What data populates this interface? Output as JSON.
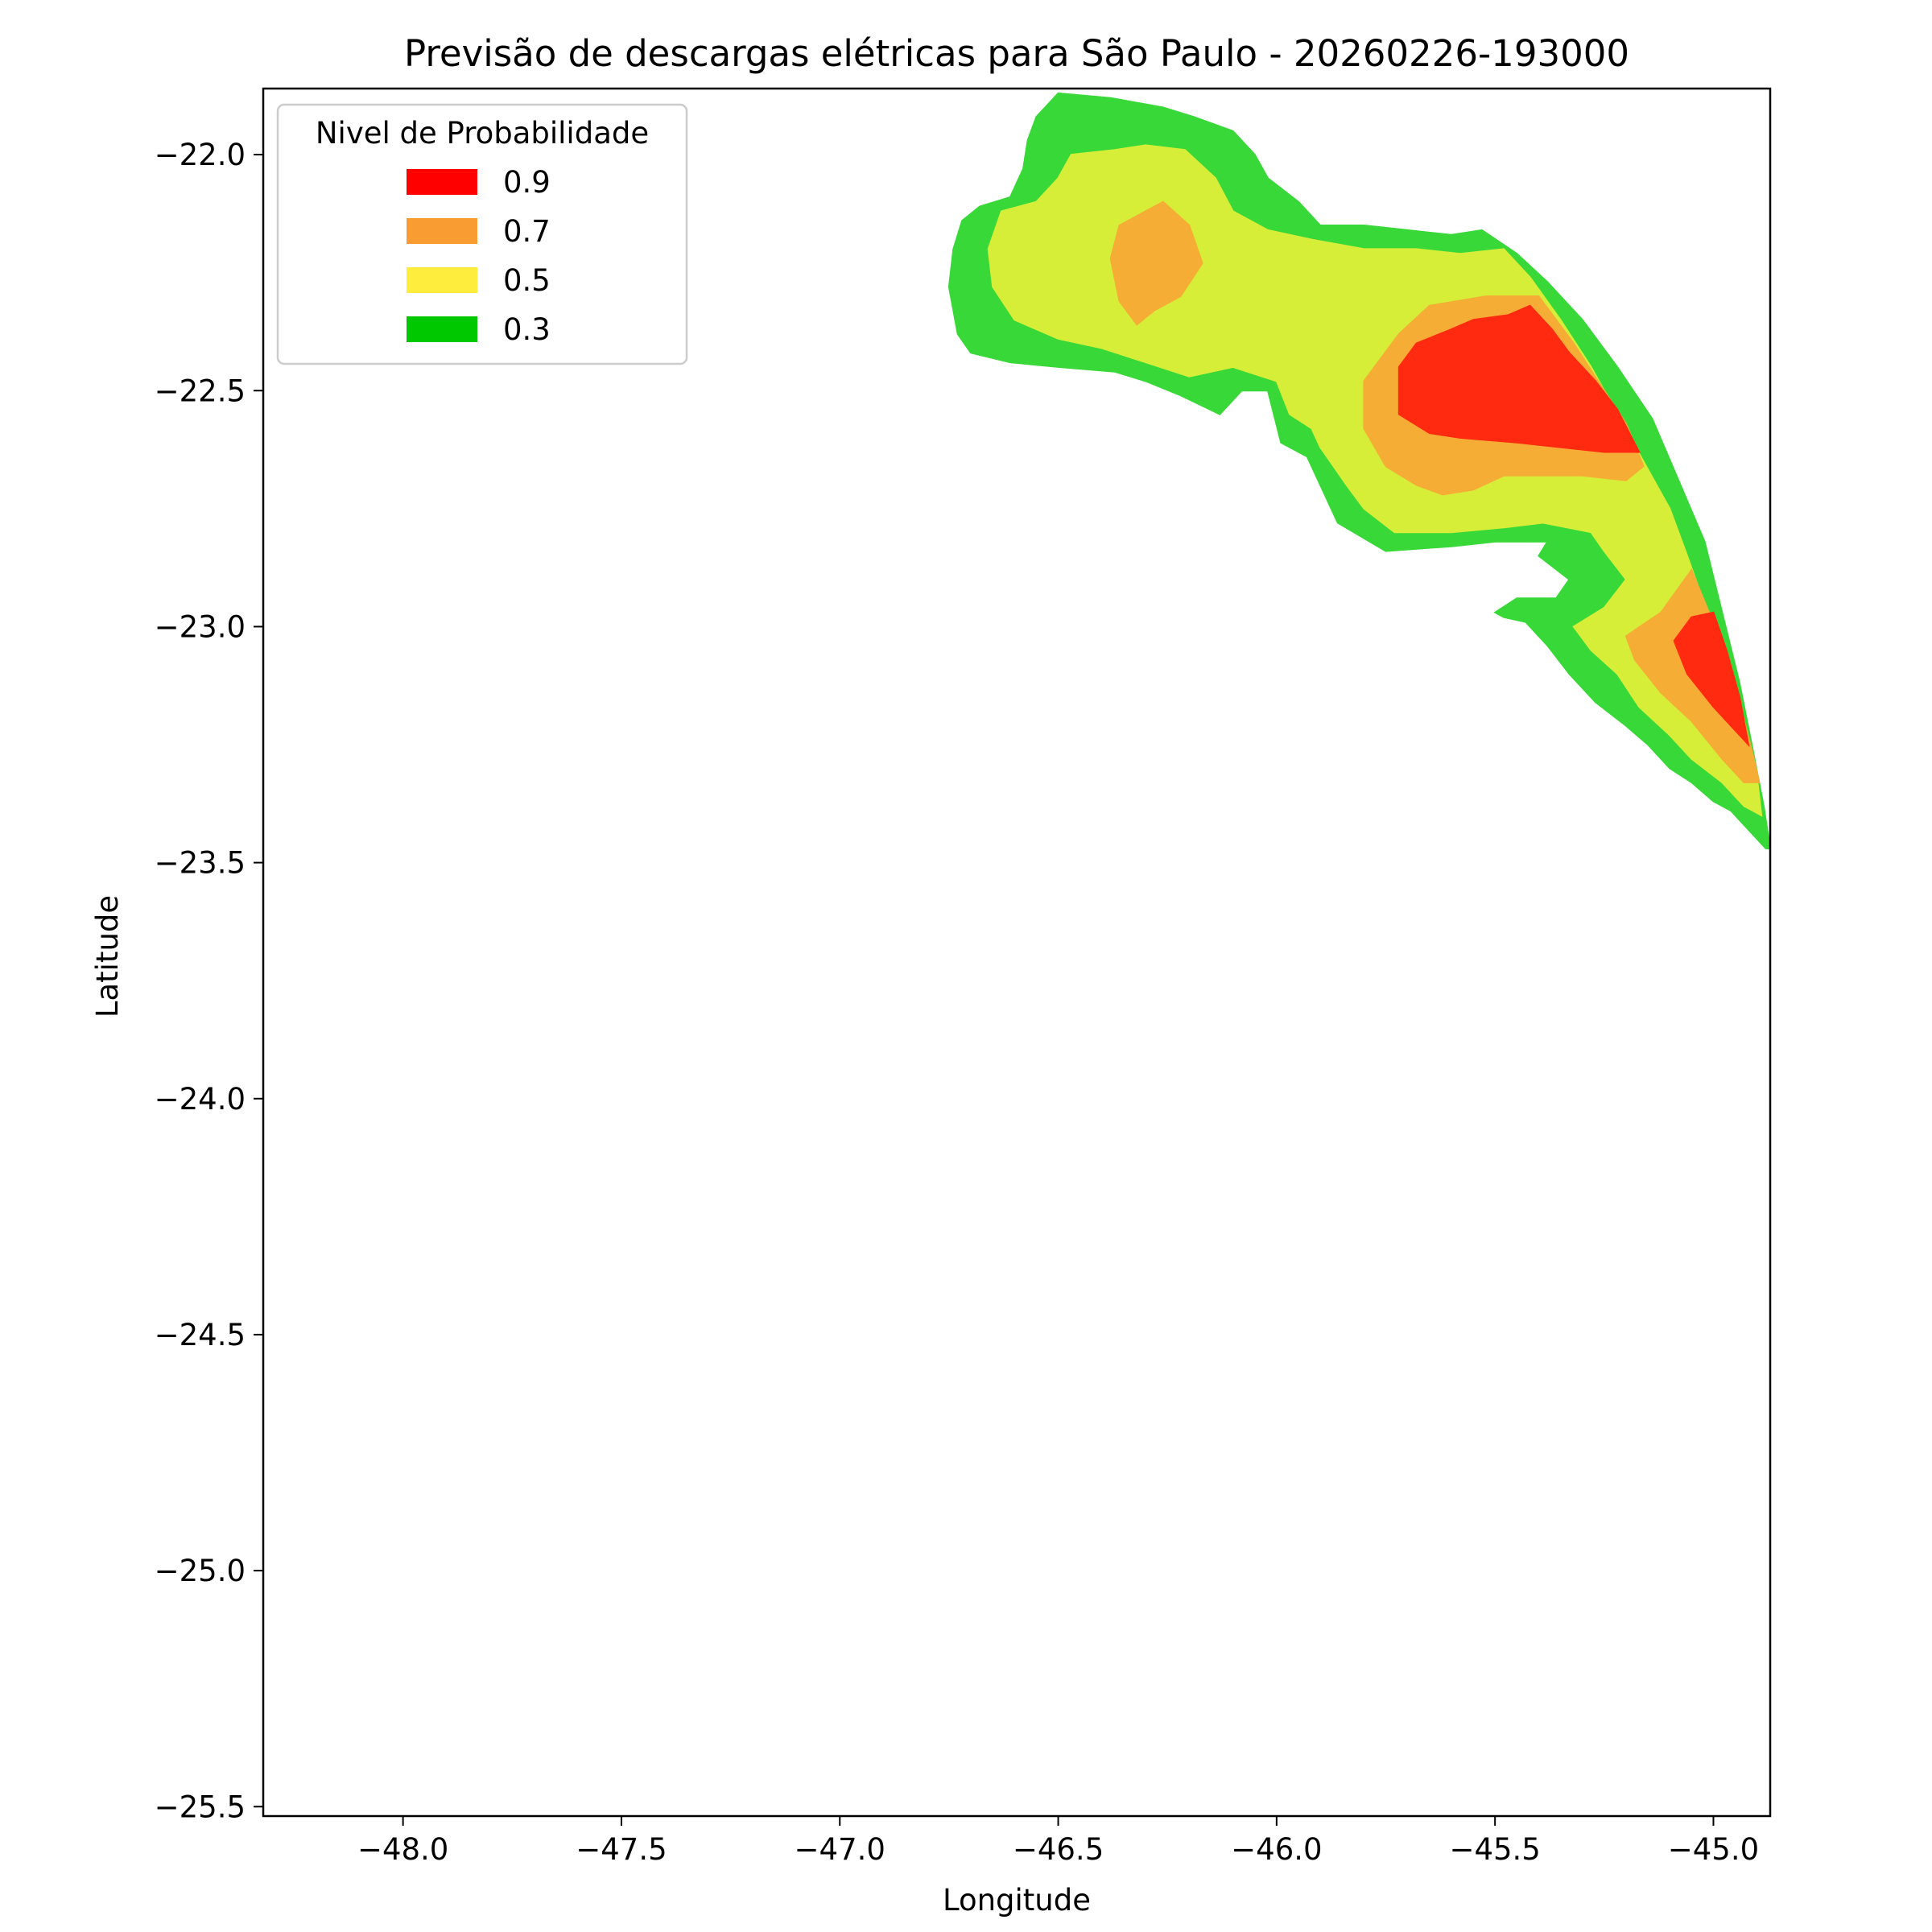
{
  "chart_data": {
    "type": "filled-contour",
    "title": "Previsão de descargas elétricas para São Paulo - 20260226-193000",
    "xlabel": "Longitude",
    "ylabel": "Latitude",
    "xlim": [
      -48.32,
      -44.87
    ],
    "ylim": [
      -25.52,
      -21.86
    ],
    "xticks": [
      -48.0,
      -47.5,
      -47.0,
      -46.5,
      -46.0,
      -45.5,
      -45.0
    ],
    "xtick_labels": [
      "−48.0",
      "−47.5",
      "−47.0",
      "−46.5",
      "−46.0",
      "−45.5",
      "−45.0"
    ],
    "yticks": [
      -22.0,
      -22.5,
      -23.0,
      -23.5,
      -24.0,
      -24.5,
      -25.0,
      -25.5
    ],
    "ytick_labels": [
      "−22.0",
      "−22.5",
      "−23.0",
      "−23.5",
      "−24.0",
      "−24.5",
      "−25.0",
      "−25.5"
    ],
    "grid": false,
    "legend": {
      "title": "Nivel de Probabilidade",
      "placement": "top-left",
      "entries": [
        {
          "label": "0.9",
          "color": "#ff0000"
        },
        {
          "label": "0.7",
          "color": "#f99d32"
        },
        {
          "label": "0.5",
          "color": "#ffed3d"
        },
        {
          "label": "0.3",
          "color": "#00c800"
        }
      ]
    },
    "levels": [
      {
        "level": "0.3",
        "color": "#39d839",
        "polygons": [
          [
            [
              -46.5,
              -21.87
            ],
            [
              -46.38,
              -21.88
            ],
            [
              -46.26,
              -21.9
            ],
            [
              -46.19,
              -21.92
            ],
            [
              -46.1,
              -21.95
            ],
            [
              -46.05,
              -22.0
            ],
            [
              -46.02,
              -22.05
            ],
            [
              -45.95,
              -22.1
            ],
            [
              -45.9,
              -22.15
            ],
            [
              -45.8,
              -22.15
            ],
            [
              -45.7,
              -22.16
            ],
            [
              -45.6,
              -22.17
            ],
            [
              -45.53,
              -22.16
            ],
            [
              -45.45,
              -22.21
            ],
            [
              -45.38,
              -22.27
            ],
            [
              -45.3,
              -22.35
            ],
            [
              -45.22,
              -22.45
            ],
            [
              -45.14,
              -22.56
            ],
            [
              -45.08,
              -22.69
            ],
            [
              -45.02,
              -22.82
            ],
            [
              -44.98,
              -22.97
            ],
            [
              -44.94,
              -23.12
            ],
            [
              -44.91,
              -23.26
            ],
            [
              -44.885,
              -23.38
            ],
            [
              -44.87,
              -23.47
            ],
            [
              -44.88,
              -23.47
            ],
            [
              -44.92,
              -23.43
            ],
            [
              -44.96,
              -23.39
            ],
            [
              -45.0,
              -23.37
            ],
            [
              -45.05,
              -23.33
            ],
            [
              -45.1,
              -23.3
            ],
            [
              -45.15,
              -23.25
            ],
            [
              -45.2,
              -23.21
            ],
            [
              -45.27,
              -23.16
            ],
            [
              -45.33,
              -23.1
            ],
            [
              -45.38,
              -23.04
            ],
            [
              -45.43,
              -22.99
            ],
            [
              -45.48,
              -22.98
            ],
            [
              -45.5,
              -22.97
            ],
            [
              -45.45,
              -22.94
            ],
            [
              -45.36,
              -22.94
            ],
            [
              -45.33,
              -22.9
            ],
            [
              -45.4,
              -22.85
            ],
            [
              -45.38,
              -22.82
            ],
            [
              -45.5,
              -22.82
            ],
            [
              -45.6,
              -22.83
            ],
            [
              -45.75,
              -22.84
            ],
            [
              -45.86,
              -22.78
            ],
            [
              -45.9,
              -22.7
            ],
            [
              -45.93,
              -22.64
            ],
            [
              -45.99,
              -22.61
            ],
            [
              -46.02,
              -22.5
            ],
            [
              -46.08,
              -22.5
            ],
            [
              -46.13,
              -22.55
            ],
            [
              -46.22,
              -22.51
            ],
            [
              -46.3,
              -22.48
            ],
            [
              -46.37,
              -22.46
            ],
            [
              -46.5,
              -22.45
            ],
            [
              -46.61,
              -22.44
            ],
            [
              -46.7,
              -22.42
            ],
            [
              -46.73,
              -22.38
            ],
            [
              -46.75,
              -22.28
            ],
            [
              -46.74,
              -22.2
            ],
            [
              -46.72,
              -22.14
            ],
            [
              -46.68,
              -22.11
            ],
            [
              -46.61,
              -22.09
            ],
            [
              -46.58,
              -22.03
            ],
            [
              -46.57,
              -21.97
            ],
            [
              -46.55,
              -21.92
            ]
          ]
        ]
      },
      {
        "level": "0.5",
        "color": "#d6ee38",
        "polygons": [
          [
            [
              -46.47,
              -22.0
            ],
            [
              -46.37,
              -21.99
            ],
            [
              -46.3,
              -21.98
            ],
            [
              -46.21,
              -21.99
            ],
            [
              -46.14,
              -22.05
            ],
            [
              -46.1,
              -22.12
            ],
            [
              -46.02,
              -22.16
            ],
            [
              -45.92,
              -22.18
            ],
            [
              -45.8,
              -22.2
            ],
            [
              -45.68,
              -22.2
            ],
            [
              -45.58,
              -22.21
            ],
            [
              -45.48,
              -22.2
            ],
            [
              -45.42,
              -22.26
            ],
            [
              -45.35,
              -22.35
            ],
            [
              -45.28,
              -22.45
            ],
            [
              -45.22,
              -22.55
            ],
            [
              -45.16,
              -22.65
            ],
            [
              -45.1,
              -22.75
            ],
            [
              -45.06,
              -22.85
            ],
            [
              -45.01,
              -22.98
            ],
            [
              -44.97,
              -23.1
            ],
            [
              -44.93,
              -23.22
            ],
            [
              -44.9,
              -23.32
            ],
            [
              -44.89,
              -23.4
            ],
            [
              -44.93,
              -23.38
            ],
            [
              -44.98,
              -23.33
            ],
            [
              -45.05,
              -23.28
            ],
            [
              -45.1,
              -23.23
            ],
            [
              -45.17,
              -23.17
            ],
            [
              -45.22,
              -23.1
            ],
            [
              -45.28,
              -23.05
            ],
            [
              -45.32,
              -23.0
            ],
            [
              -45.25,
              -22.96
            ],
            [
              -45.2,
              -22.9
            ],
            [
              -45.25,
              -22.84
            ],
            [
              -45.28,
              -22.8
            ],
            [
              -45.39,
              -22.78
            ],
            [
              -45.48,
              -22.79
            ],
            [
              -45.6,
              -22.8
            ],
            [
              -45.73,
              -22.8
            ],
            [
              -45.8,
              -22.75
            ],
            [
              -45.84,
              -22.7
            ],
            [
              -45.9,
              -22.62
            ],
            [
              -45.92,
              -22.58
            ],
            [
              -45.97,
              -22.55
            ],
            [
              -46.0,
              -22.48
            ],
            [
              -46.1,
              -22.45
            ],
            [
              -46.2,
              -22.47
            ],
            [
              -46.3,
              -22.44
            ],
            [
              -46.4,
              -22.41
            ],
            [
              -46.5,
              -22.39
            ],
            [
              -46.6,
              -22.35
            ],
            [
              -46.65,
              -22.28
            ],
            [
              -46.66,
              -22.2
            ],
            [
              -46.63,
              -22.12
            ],
            [
              -46.55,
              -22.1
            ],
            [
              -46.5,
              -22.05
            ]
          ]
        ]
      },
      {
        "level": "0.7",
        "color": "#f5ad35",
        "polygons": [
          [
            [
              -46.36,
              -22.15
            ],
            [
              -46.26,
              -22.1
            ],
            [
              -46.2,
              -22.15
            ],
            [
              -46.17,
              -22.23
            ],
            [
              -46.22,
              -22.3
            ],
            [
              -46.28,
              -22.33
            ],
            [
              -46.32,
              -22.36
            ],
            [
              -46.36,
              -22.31
            ],
            [
              -46.38,
              -22.22
            ]
          ],
          [
            [
              -45.4,
              -22.3
            ],
            [
              -45.52,
              -22.3
            ],
            [
              -45.65,
              -22.32
            ],
            [
              -45.72,
              -22.38
            ],
            [
              -45.8,
              -22.48
            ],
            [
              -45.8,
              -22.58
            ],
            [
              -45.75,
              -22.66
            ],
            [
              -45.68,
              -22.7
            ],
            [
              -45.62,
              -22.72
            ],
            [
              -45.55,
              -22.71
            ],
            [
              -45.48,
              -22.68
            ],
            [
              -45.4,
              -22.68
            ],
            [
              -45.3,
              -22.68
            ],
            [
              -45.2,
              -22.69
            ],
            [
              -45.16,
              -22.66
            ],
            [
              -45.2,
              -22.57
            ],
            [
              -45.25,
              -22.5
            ],
            [
              -45.32,
              -22.4
            ]
          ],
          [
            [
              -45.05,
              -22.88
            ],
            [
              -45.01,
              -22.97
            ],
            [
              -44.97,
              -23.08
            ],
            [
              -44.935,
              -23.18
            ],
            [
              -44.91,
              -23.27
            ],
            [
              -44.895,
              -23.33
            ],
            [
              -44.93,
              -23.33
            ],
            [
              -44.98,
              -23.28
            ],
            [
              -45.05,
              -23.2
            ],
            [
              -45.12,
              -23.14
            ],
            [
              -45.18,
              -23.07
            ],
            [
              -45.2,
              -23.02
            ],
            [
              -45.12,
              -22.97
            ]
          ]
        ]
      },
      {
        "level": "0.9",
        "color": "#ff2a10",
        "polygons": [
          [
            [
              -45.55,
              -22.35
            ],
            [
              -45.47,
              -22.34
            ],
            [
              -45.42,
              -22.32
            ],
            [
              -45.37,
              -22.37
            ],
            [
              -45.33,
              -22.42
            ],
            [
              -45.27,
              -22.48
            ],
            [
              -45.22,
              -22.54
            ],
            [
              -45.17,
              -22.63
            ],
            [
              -45.25,
              -22.63
            ],
            [
              -45.35,
              -22.62
            ],
            [
              -45.45,
              -22.61
            ],
            [
              -45.58,
              -22.6
            ],
            [
              -45.65,
              -22.59
            ],
            [
              -45.72,
              -22.55
            ],
            [
              -45.72,
              -22.45
            ],
            [
              -45.68,
              -22.4
            ],
            [
              -45.6,
              -22.37
            ]
          ],
          [
            [
              -45.0,
              -22.97
            ],
            [
              -44.97,
              -23.05
            ],
            [
              -44.94,
              -23.15
            ],
            [
              -44.92,
              -23.25
            ],
            [
              -44.95,
              -23.22
            ],
            [
              -45.0,
              -23.17
            ],
            [
              -45.06,
              -23.1
            ],
            [
              -45.09,
              -23.03
            ],
            [
              -45.05,
              -22.98
            ]
          ]
        ]
      }
    ]
  }
}
